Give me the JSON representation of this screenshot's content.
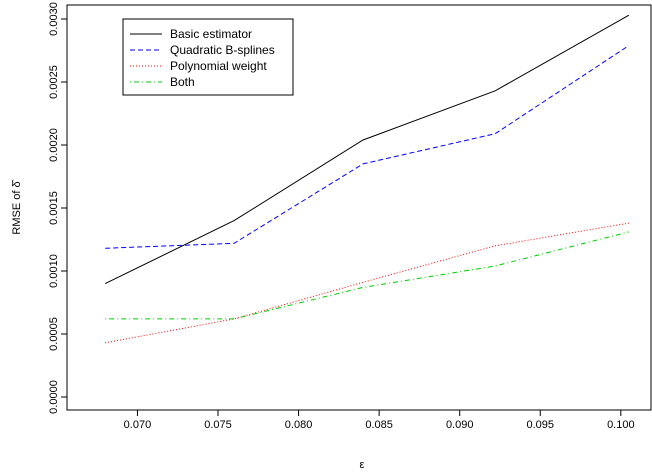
{
  "chart_data": {
    "type": "line",
    "title": "",
    "xlabel": "ε",
    "ylabel": "RMSE of δ̂",
    "x": [
      0.068,
      0.076,
      0.084,
      0.0922,
      0.1005
    ],
    "xlim": [
      0.066,
      0.1015
    ],
    "ylim": [
      0.0,
      0.003
    ],
    "xticks": [
      "0.070",
      "0.075",
      "0.080",
      "0.085",
      "0.090",
      "0.095",
      "0.100"
    ],
    "yticks": [
      "0.0000",
      "0.0005",
      "0.0010",
      "0.0015",
      "0.0020",
      "0.0025",
      "0.0030"
    ],
    "grid": false,
    "legend_position": "top-left",
    "series": [
      {
        "name": "Basic estimator",
        "color": "#000000",
        "dash": "solid",
        "values": [
          0.0009,
          0.0014,
          0.00204,
          0.00243,
          0.00303
        ]
      },
      {
        "name": "Quadratic B-splines",
        "color": "#0000ff",
        "dash": "dashed",
        "values": [
          0.00118,
          0.00122,
          0.00185,
          0.00209,
          0.00279
        ]
      },
      {
        "name": "Polynomial weight",
        "color": "#ff0000",
        "dash": "dotted",
        "values": [
          0.00043,
          0.00062,
          0.00091,
          0.0012,
          0.00138
        ]
      },
      {
        "name": "Both",
        "color": "#00cc00",
        "dash": "dotdash",
        "values": [
          0.00062,
          0.00062,
          0.00087,
          0.00104,
          0.00131
        ]
      }
    ]
  }
}
